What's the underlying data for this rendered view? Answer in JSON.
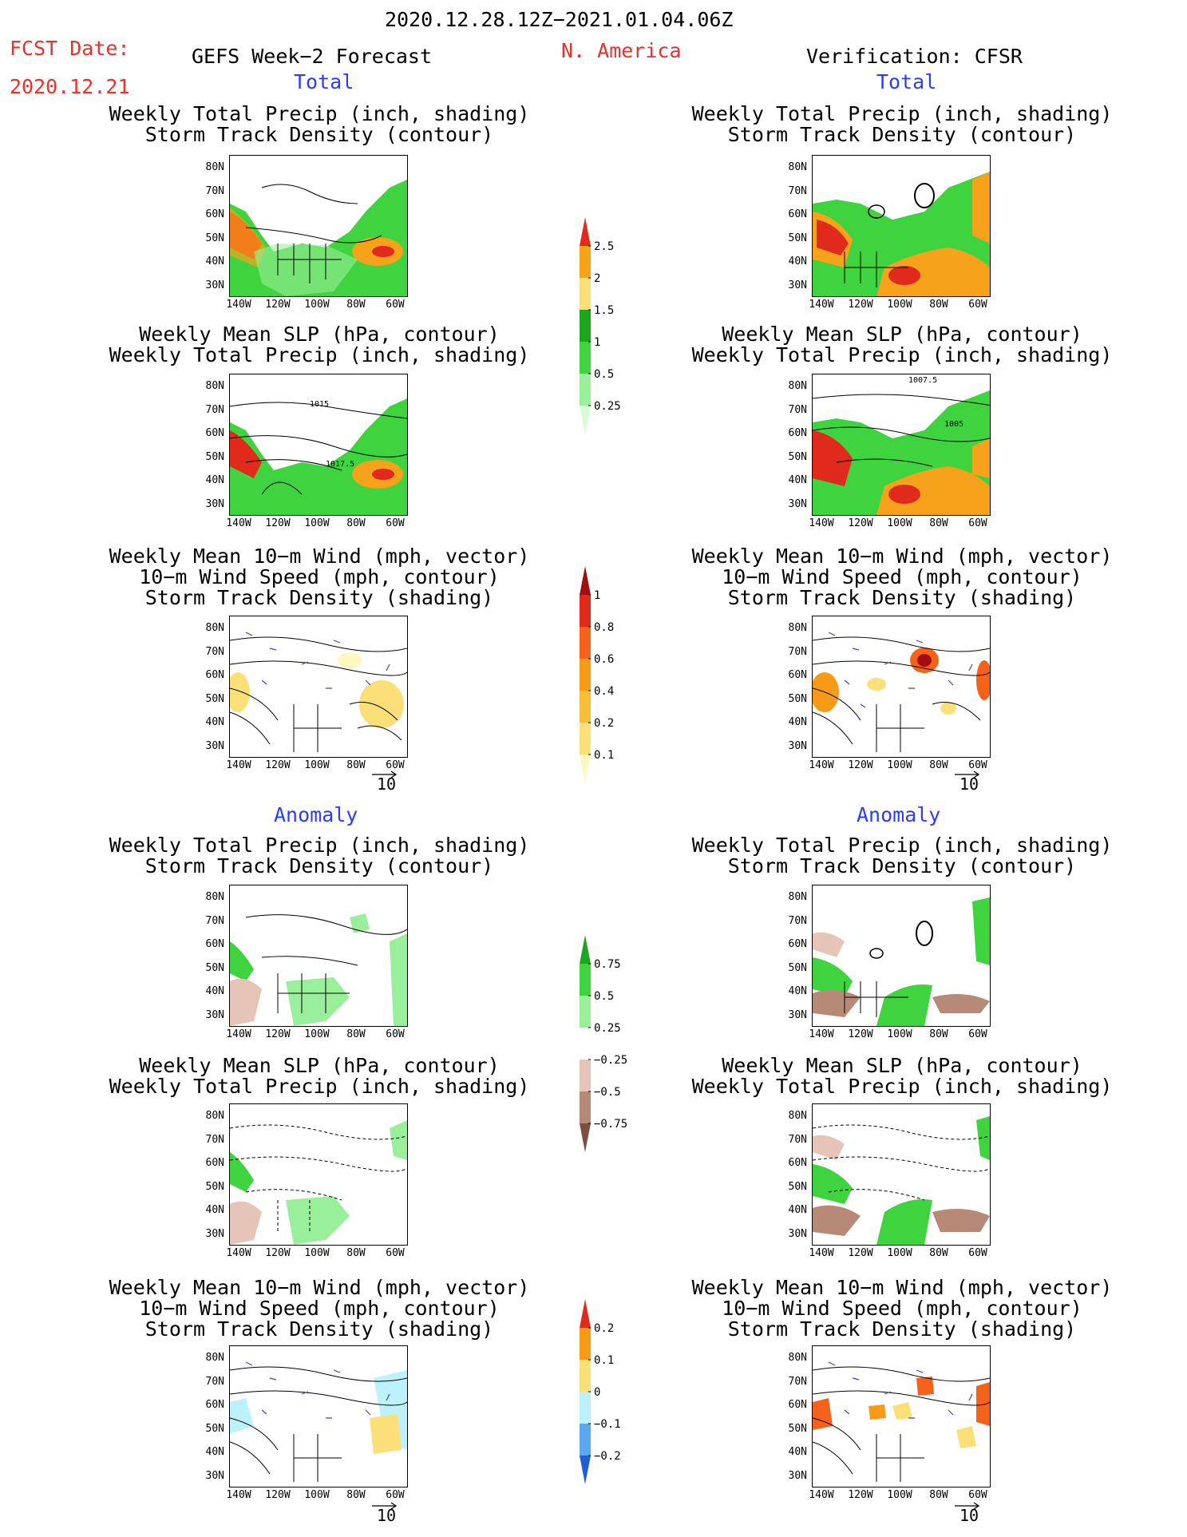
{
  "header": {
    "date_range": "2020.12.28.12Z−2021.01.04.06Z",
    "fcst_label": "FCST Date:",
    "fcst_date": "2020.12.21",
    "forecast_title": "GEFS Week−2 Forecast",
    "region": "N. America",
    "verification": "Verification: CFSR"
  },
  "sections": {
    "total": "Total",
    "anomaly": "Anomaly"
  },
  "titles": {
    "precip_storm": "Weekly Total Precip (inch, shading)\nStorm Track Density (contour)",
    "slp_precip": "Weekly Mean SLP (hPa, contour)\nWeekly Total Precip (inch, shading)",
    "wind_storm": "Weekly Mean 10−m Wind (mph, vector)\n10−m Wind Speed (mph, contour)\nStorm Track Density (shading)"
  },
  "axes": {
    "lat_ticks": [
      "80N",
      "70N",
      "60N",
      "50N",
      "40N",
      "30N"
    ],
    "lon_ticks": [
      "140W",
      "120W",
      "100W",
      "80W",
      "60W"
    ]
  },
  "contour_labels": {
    "gefs_slp": [
      "1015",
      "1017.5"
    ],
    "cfsr_slp": [
      "1007.5",
      "1005"
    ]
  },
  "vector_ref": "10",
  "colorbars": {
    "precip_total": {
      "labels": [
        "2.5",
        "2",
        "1.5",
        "1",
        "0.5",
        "0.25"
      ],
      "colors": [
        "#e02a1c",
        "#f7a21b",
        "#fbe07a",
        "#1ea51e",
        "#3fd33f",
        "#9af09a",
        "#d8fbd8"
      ]
    },
    "storm_total": {
      "labels": [
        "1",
        "0.8",
        "0.6",
        "0.4",
        "0.2",
        "0.1"
      ],
      "colors": [
        "#a30f0f",
        "#e02a1c",
        "#f4621c",
        "#f79a17",
        "#f7be3a",
        "#fbe07a",
        "#fdf7c2"
      ]
    },
    "precip_anom": {
      "labels": [
        "0.75",
        "0.5",
        "0.25",
        "−0.25",
        "−0.5",
        "−0.75"
      ],
      "colors": [
        "#1ea51e",
        "#3fd33f",
        "#9af09a",
        "#ffffff",
        "#e6c4b8",
        "#b78a78",
        "#7a5040"
      ]
    },
    "storm_anom": {
      "labels": [
        "0.2",
        "0.1",
        "0",
        "−0.1",
        "−0.2"
      ],
      "colors": [
        "#e02a1c",
        "#f79a17",
        "#fbe07a",
        "#bdf1fb",
        "#5aa8f0",
        "#1f5fd6"
      ]
    }
  }
}
